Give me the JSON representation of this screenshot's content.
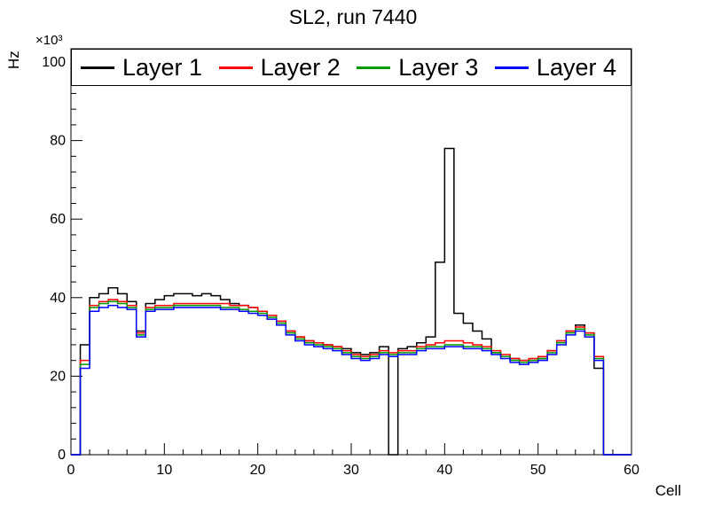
{
  "title": "SL2, run 7440",
  "axes": {
    "x": {
      "label": "Cell",
      "min": 0,
      "max": 60,
      "major_ticks": [
        0,
        10,
        20,
        30,
        40,
        50,
        60
      ]
    },
    "y": {
      "label": "Hz",
      "multiplier": "×10³",
      "min": 0,
      "max": 100,
      "major_ticks": [
        0,
        20,
        40,
        60,
        80,
        100
      ]
    }
  },
  "legend": {
    "position": "top",
    "entries": [
      {
        "label": "Layer 1",
        "color": "#000000"
      },
      {
        "label": "Layer 2",
        "color": "#ff0000"
      },
      {
        "label": "Layer 3",
        "color": "#009900"
      },
      {
        "label": "Layer 4",
        "color": "#0000ff"
      }
    ]
  },
  "chart_data": {
    "type": "line",
    "style": "step-histogram",
    "title": "SL2, run 7440",
    "xlabel": "Cell",
    "ylabel": "Hz",
    "y_scale_label": "×10³",
    "xlim": [
      0,
      60
    ],
    "ylim": [
      0,
      100
    ],
    "bin_width": 1,
    "values_unit": "kHz (×10³ Hz)",
    "series": [
      {
        "name": "Layer 1",
        "color": "#000000",
        "values": [
          0,
          28,
          40,
          41,
          42.5,
          41,
          39,
          31.5,
          38.5,
          39.5,
          40.5,
          41,
          41,
          40.5,
          41,
          40.5,
          39.5,
          38.5,
          38,
          37.5,
          36.5,
          35.5,
          34,
          31.5,
          30,
          29,
          28.5,
          28,
          27.5,
          27,
          26,
          25.5,
          26,
          27.5,
          0,
          27,
          27.5,
          28.5,
          30,
          49,
          78,
          36,
          33.5,
          31.5,
          29.5,
          26,
          25,
          24.5,
          24,
          24,
          24.5,
          26.5,
          29,
          31.5,
          33,
          31,
          22,
          0,
          0,
          0
        ]
      },
      {
        "name": "Layer 2",
        "color": "#ff0000",
        "values": [
          0,
          24,
          38,
          39,
          39.5,
          39,
          38,
          31,
          37.5,
          38,
          38,
          38.5,
          38.5,
          38.5,
          38.5,
          38.5,
          38.5,
          38,
          38,
          37.5,
          36.5,
          35.5,
          34,
          31.5,
          30,
          29,
          28.5,
          28,
          27.5,
          26.5,
          25.5,
          25,
          25.5,
          26.5,
          26,
          26.5,
          26.5,
          27.5,
          28,
          28.5,
          29,
          29,
          28.5,
          28,
          27.5,
          26.5,
          25.5,
          24.5,
          24,
          24.5,
          25,
          26.5,
          29,
          31.5,
          32.5,
          31,
          25,
          0,
          0,
          0
        ]
      },
      {
        "name": "Layer 3",
        "color": "#009900",
        "values": [
          0,
          23,
          37.5,
          38.5,
          39,
          38.5,
          37.5,
          30.5,
          37,
          37.5,
          37.5,
          38,
          38,
          38,
          38,
          38,
          37.5,
          37.5,
          37,
          36.5,
          36,
          35,
          33.5,
          31,
          29.5,
          28.5,
          28,
          27.5,
          27,
          26,
          25,
          24.5,
          25,
          26,
          25.5,
          26,
          26,
          27,
          27.5,
          27.5,
          28,
          28,
          27.5,
          27.5,
          27,
          26,
          25,
          24,
          23.5,
          24,
          24.5,
          26,
          28.5,
          31,
          32,
          30.5,
          24.5,
          0,
          0,
          0
        ]
      },
      {
        "name": "Layer 4",
        "color": "#0000ff",
        "values": [
          0,
          22,
          36.5,
          37.5,
          38,
          37.5,
          37,
          30,
          36.5,
          37,
          37,
          37.5,
          37.5,
          37.5,
          37.5,
          37.5,
          37,
          37,
          36.5,
          36,
          35.5,
          34.5,
          33,
          30.5,
          29,
          28,
          27.5,
          27,
          26.5,
          25.5,
          24.5,
          24,
          24.5,
          25.5,
          25,
          25.5,
          25.5,
          26.5,
          27,
          27,
          27.5,
          27.5,
          27,
          27,
          26.5,
          25.5,
          24.5,
          23.5,
          23,
          23.5,
          24,
          25.5,
          28,
          30.5,
          31.5,
          30,
          24,
          0,
          0,
          0
        ]
      }
    ]
  }
}
